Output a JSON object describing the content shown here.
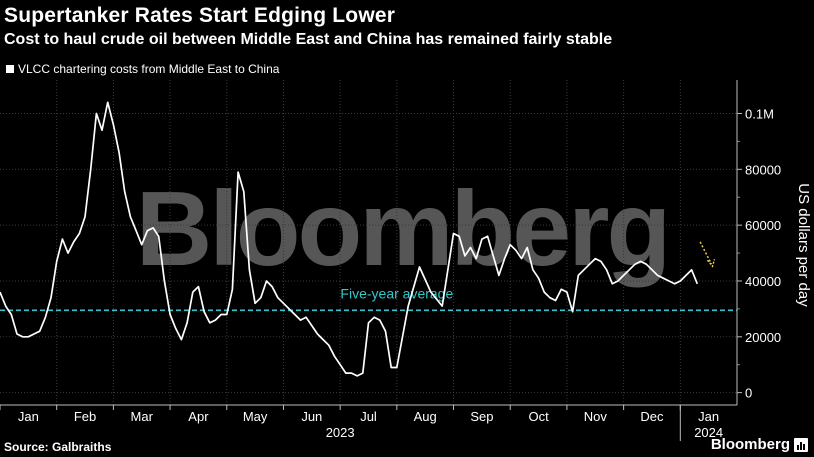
{
  "title": "Supertanker Rates Start Edging Lower",
  "subtitle": "Cost to haul crude oil between Middle East and China has remained fairly stable",
  "source": "Source: Galbraiths",
  "brand": "Bloomberg",
  "watermark": "Bloomberg",
  "chart_data": {
    "type": "line",
    "title": "Supertanker Rates Start Edging Lower",
    "subtitle": "Cost to haul crude oil between Middle East and China has remained fairly stable",
    "ylabel": "US dollars per day",
    "xlabel": "",
    "ylim": [
      -3000,
      112000
    ],
    "xlim": [
      0,
      13
    ],
    "y_ticks": [
      0,
      20000,
      40000,
      60000,
      80000,
      100000
    ],
    "y_tick_labels": [
      "0",
      "20000",
      "40000",
      "60000",
      "80000",
      "0.1M"
    ],
    "x_tick_labels": [
      "Jan",
      "Feb",
      "Mar",
      "Apr",
      "May",
      "Jun",
      "Jul",
      "Aug",
      "Sep",
      "Oct",
      "Nov",
      "Dec",
      "Jan"
    ],
    "year_labels": [
      "2023",
      "2024"
    ],
    "grid": true,
    "legend": "top-left",
    "series": [
      {
        "name": "VLCC chartering costs from Middle East to China",
        "color": "#ffffff",
        "x": [
          0,
          0.1,
          0.2,
          0.3,
          0.4,
          0.5,
          0.6,
          0.7,
          0.8,
          0.9,
          1.0,
          1.1,
          1.2,
          1.3,
          1.4,
          1.5,
          1.6,
          1.7,
          1.8,
          1.9,
          2.0,
          2.1,
          2.2,
          2.3,
          2.4,
          2.5,
          2.6,
          2.7,
          2.8,
          2.9,
          3.0,
          3.1,
          3.2,
          3.3,
          3.4,
          3.5,
          3.6,
          3.7,
          3.8,
          3.9,
          4.0,
          4.1,
          4.2,
          4.3,
          4.4,
          4.5,
          4.6,
          4.7,
          4.8,
          4.9,
          5.0,
          5.1,
          5.2,
          5.3,
          5.4,
          5.5,
          5.6,
          5.7,
          5.8,
          5.9,
          6.0,
          6.1,
          6.2,
          6.3,
          6.4,
          6.5,
          6.6,
          6.7,
          6.8,
          6.9,
          7.0,
          7.2,
          7.4,
          7.6,
          7.8,
          8.0,
          8.1,
          8.2,
          8.3,
          8.4,
          8.5,
          8.6,
          8.7,
          8.8,
          8.9,
          9.0,
          9.1,
          9.2,
          9.3,
          9.4,
          9.5,
          9.6,
          9.7,
          9.8,
          9.9,
          10.0,
          10.1,
          10.2,
          10.3,
          10.4,
          10.5,
          10.6,
          10.7,
          10.8,
          10.9,
          11.0,
          11.1,
          11.2,
          11.3,
          11.4,
          11.5,
          11.6,
          11.7,
          11.8,
          11.9,
          12.0,
          12.1,
          12.2,
          12.3
        ],
        "values": [
          36000,
          31000,
          28000,
          21000,
          20000,
          20000,
          21000,
          22000,
          27000,
          34000,
          47000,
          55000,
          50000,
          54000,
          57000,
          63000,
          80000,
          100000,
          94000,
          104000,
          96000,
          86000,
          72000,
          63000,
          58000,
          53000,
          58000,
          59000,
          56000,
          40000,
          28000,
          23000,
          19000,
          25000,
          36000,
          38000,
          29000,
          25000,
          26000,
          28000,
          28000,
          37000,
          79000,
          72000,
          44000,
          32000,
          34000,
          40000,
          38000,
          34000,
          32000,
          30000,
          28000,
          26000,
          27000,
          24000,
          21000,
          19000,
          17000,
          13000,
          10000,
          7000,
          7000,
          6000,
          7000,
          25000,
          27000,
          26000,
          22000,
          9000,
          9000,
          31000,
          45000,
          36000,
          31000,
          57000,
          56000,
          49000,
          52000,
          48000,
          55000,
          56000,
          49000,
          42000,
          48000,
          53000,
          51000,
          48000,
          52000,
          44000,
          41000,
          36000,
          34000,
          33000,
          37000,
          36000,
          29000,
          42000,
          44000,
          46000,
          48000,
          47000,
          44000,
          39000,
          40000,
          42000,
          44000,
          46000,
          47000,
          46000,
          44000,
          42000,
          41000,
          40000,
          39000,
          40000,
          42000,
          44000,
          39000
        ]
      },
      {
        "name": "Five-year average",
        "color": "#36c6cc",
        "y": 29500,
        "label": "Five-year average"
      }
    ]
  }
}
